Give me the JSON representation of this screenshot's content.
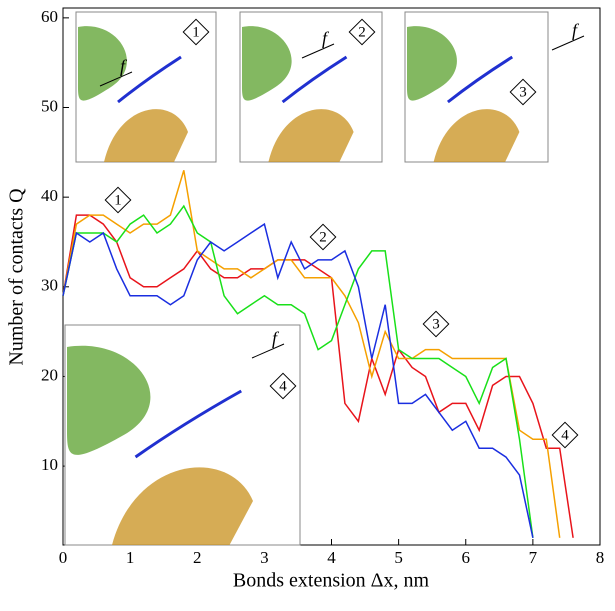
{
  "chart_data": {
    "type": "line",
    "x_label": "Bonds extension Δx, nm",
    "y_label": "Number of contacts Q",
    "x": [
      0,
      0.2,
      0.4,
      0.6,
      0.8,
      1.0,
      1.2,
      1.4,
      1.6,
      1.8,
      2.0,
      2.2,
      2.4,
      2.6,
      2.8,
      3.0,
      3.2,
      3.4,
      3.6,
      3.8,
      4.0,
      4.2,
      4.4,
      4.6,
      4.8,
      5.0,
      5.2,
      5.4,
      5.6,
      5.8,
      6.0,
      6.2,
      6.4,
      6.6,
      6.8,
      7.0,
      7.2,
      7.4,
      7.6
    ],
    "series": [
      {
        "color": "#e8141b",
        "values": [
          29,
          38,
          38,
          37,
          35,
          31,
          30,
          30,
          31,
          32,
          34,
          32,
          31,
          31,
          32,
          32,
          33,
          33,
          33,
          32,
          31,
          17,
          15,
          22,
          18,
          23,
          21,
          20,
          16,
          17,
          17,
          14,
          19,
          20,
          20,
          17,
          12,
          12,
          2
        ]
      },
      {
        "color": "#f5a000",
        "values": [
          29,
          37,
          38,
          38,
          37,
          36,
          37,
          37,
          38,
          43,
          34,
          33,
          32,
          32,
          31,
          32,
          33,
          33,
          31,
          31,
          31,
          29,
          26,
          20,
          25,
          22,
          22,
          23,
          23,
          22,
          22,
          22,
          22,
          22,
          14,
          13,
          13,
          2,
          null
        ]
      },
      {
        "color": "#19e019",
        "values": [
          29,
          36,
          36,
          36,
          35,
          37,
          38,
          36,
          37,
          39,
          36,
          35,
          29,
          27,
          28,
          29,
          28,
          28,
          27,
          23,
          24,
          28,
          32,
          34,
          34,
          23,
          22,
          22,
          22,
          21,
          20,
          17,
          21,
          22,
          13,
          2,
          null,
          null,
          null
        ]
      },
      {
        "color": "#1a2ee0",
        "values": [
          29,
          36,
          35,
          36,
          32,
          29,
          29,
          29,
          28,
          29,
          33,
          35,
          34,
          35,
          36,
          37,
          31,
          35,
          32,
          33,
          33,
          34,
          30,
          22,
          28,
          17,
          17,
          18,
          16,
          14,
          15,
          12,
          12,
          11,
          9,
          2,
          null,
          null,
          null
        ]
      }
    ],
    "xlim": [
      0,
      8
    ],
    "xticks": [
      0,
      1,
      2,
      3,
      4,
      5,
      6,
      7,
      8
    ],
    "ylim": [
      1.2,
      61.1
    ],
    "yticks": [
      10,
      20,
      30,
      40,
      50,
      60
    ],
    "annotations": [
      "1",
      "2",
      "3",
      "4"
    ],
    "insets": [
      {
        "label": "1",
        "force": "f"
      },
      {
        "label": "2",
        "force": "f"
      },
      {
        "label": "3",
        "force": "f"
      },
      {
        "label": "4",
        "force": "f"
      }
    ]
  }
}
